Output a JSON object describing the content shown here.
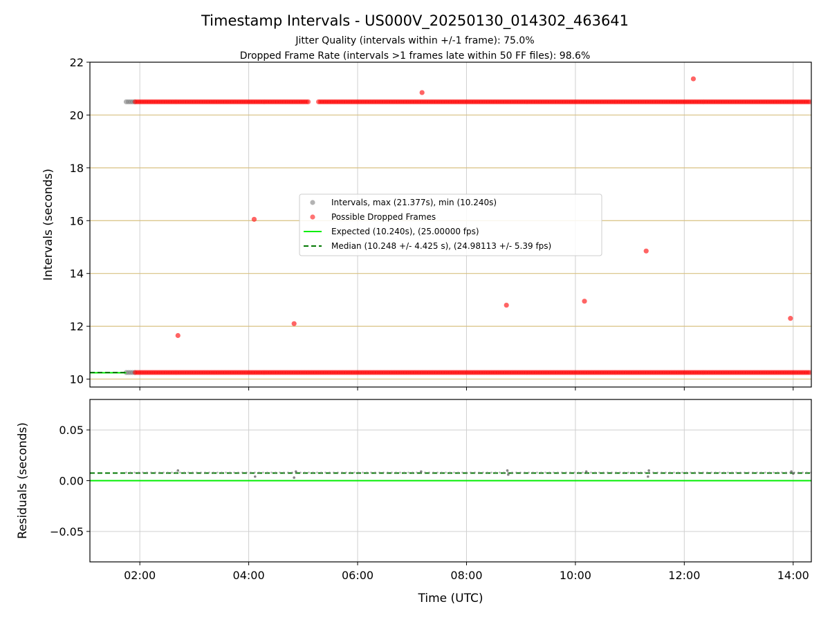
{
  "title": "Timestamp Intervals - US000V_20250130_014302_463641",
  "subtitle_lines": [
    "Jitter Quality (intervals within +/-1 frame): 75.0%",
    "Dropped Frame Rate (intervals >1 frames late within 50 FF files): 98.6%"
  ],
  "chart_data": [
    {
      "type": "scatter",
      "name": "intervals",
      "ylabel": "Intervals (seconds)",
      "xlim": [
        "01:05",
        "14:20"
      ],
      "ylim": [
        9.7,
        22
      ],
      "yticks": [
        10,
        12,
        14,
        16,
        18,
        20,
        22
      ],
      "xticks": [
        "02:00",
        "04:00",
        "06:00",
        "08:00",
        "10:00",
        "12:00",
        "14:00"
      ],
      "grid": true,
      "legend": {
        "placement": "center",
        "entries": [
          {
            "label": "Intervals, max (21.377s), min (10.240s)",
            "kind": "marker",
            "color": "#a0a0a0"
          },
          {
            "label": "Possible Dropped Frames",
            "kind": "marker",
            "color": "#ff5050"
          },
          {
            "label": "Expected (10.240s), (25.00000 fps)",
            "kind": "line",
            "color": "#00ee00"
          },
          {
            "label": "Median (10.248 +/- 4.425 s), (24.98113 +/- 5.39 fps)",
            "kind": "dashed",
            "color": "#007700"
          }
        ]
      },
      "series": [
        {
          "name": "Intervals",
          "color": "#808080",
          "dense_bands": [
            {
              "y": 20.5,
              "x_start": "01:45",
              "x_end": "01:55"
            },
            {
              "y": 10.25,
              "x_start": "01:45",
              "x_end": "01:55"
            }
          ]
        },
        {
          "name": "Possible Dropped Frames",
          "color": "#ff0000",
          "dense_bands": [
            {
              "y": 20.5,
              "x_start": "01:55",
              "x_end": "14:20",
              "gaps": [
                [
                  "05:07",
                  "05:16"
                ]
              ]
            },
            {
              "y": 10.25,
              "x_start": "01:55",
              "x_end": "14:20"
            }
          ],
          "points": [
            {
              "x": "02:42",
              "y": 11.65
            },
            {
              "x": "04:06",
              "y": 16.05
            },
            {
              "x": "04:50",
              "y": 12.1
            },
            {
              "x": "07:11",
              "y": 20.85
            },
            {
              "x": "08:44",
              "y": 12.8
            },
            {
              "x": "10:10",
              "y": 12.95
            },
            {
              "x": "11:18",
              "y": 14.85
            },
            {
              "x": "12:10",
              "y": 21.37
            },
            {
              "x": "13:57",
              "y": 12.3
            }
          ]
        }
      ],
      "lines": [
        {
          "name": "Expected",
          "y": 10.24,
          "x_end": "01:45",
          "color": "#00ee00",
          "style": "solid"
        },
        {
          "name": "Median",
          "y": 10.248,
          "x_end": "01:45",
          "color": "#007700",
          "style": "dashed"
        }
      ],
      "hlines": {
        "values": [
          10,
          12,
          14,
          16,
          18,
          20
        ],
        "color": "#d8c080"
      }
    },
    {
      "type": "scatter",
      "name": "residuals",
      "ylabel": "Residuals (seconds)",
      "xlabel": "Time (UTC)",
      "xlim": [
        "01:05",
        "14:20"
      ],
      "ylim": [
        -0.08,
        0.08
      ],
      "yticks": [
        -0.05,
        0.0,
        0.05
      ],
      "ytick_labels": [
        "−0.05",
        "0.00",
        "0.05"
      ],
      "xticks": [
        "02:00",
        "04:00",
        "06:00",
        "08:00",
        "10:00",
        "12:00",
        "14:00"
      ],
      "grid": true,
      "series": [
        {
          "name": "Residuals",
          "color": "#808080",
          "band": {
            "y": 0.008,
            "x_start": "01:45",
            "x_end": "14:20"
          },
          "points": [
            {
              "x": "02:42",
              "y": 0.01
            },
            {
              "x": "04:07",
              "y": 0.004
            },
            {
              "x": "04:50",
              "y": 0.003
            },
            {
              "x": "04:52",
              "y": 0.009
            },
            {
              "x": "07:10",
              "y": 0.009
            },
            {
              "x": "08:45",
              "y": 0.01
            },
            {
              "x": "08:46",
              "y": 0.006
            },
            {
              "x": "10:12",
              "y": 0.009
            },
            {
              "x": "11:20",
              "y": 0.004
            },
            {
              "x": "11:21",
              "y": 0.01
            },
            {
              "x": "13:58",
              "y": 0.009
            },
            {
              "x": "14:00",
              "y": 0.007
            }
          ]
        }
      ],
      "lines": [
        {
          "name": "Expected",
          "y": 0.0,
          "color": "#00ee00",
          "style": "solid"
        },
        {
          "name": "Median",
          "y": 0.0075,
          "color": "#007700",
          "style": "dashed"
        }
      ]
    }
  ]
}
